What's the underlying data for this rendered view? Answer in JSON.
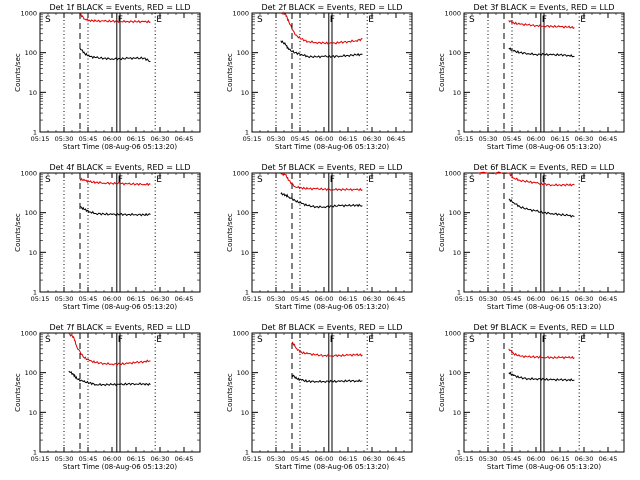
{
  "figure": {
    "background": "#ffffff",
    "colors": {
      "events": "#000000",
      "lld": "#e00000",
      "axes": "#000000"
    }
  },
  "chart_data": [
    {
      "type": "line",
      "title": "Det 1f BLACK = Events, RED = LLD",
      "xlabel": "Start Time (08-Aug-06 05:13:20)",
      "ylabel": "Counts/sec",
      "x_ticks": [
        "05:15",
        "05:30",
        "05:45",
        "06:00",
        "06:15",
        "06:30",
        "06:45"
      ],
      "y_ticks": [
        "1",
        "10",
        "100",
        "1000"
      ],
      "y_scale": "log",
      "xlim": [
        "05:15",
        "06:55"
      ],
      "ylim": [
        1,
        1000
      ],
      "grid": false,
      "region_labels": [
        "S",
        "F",
        "E"
      ],
      "region_markers": {
        "S_dotted": "05:30",
        "F_dashed": "05:40",
        "S2_dotted": "05:45",
        "F_double_1": "06:03",
        "F_double_2": "06:05",
        "E_dotted": "06:27"
      },
      "series": [
        {
          "name": "LLD",
          "x": [
            "05:40",
            "05:43",
            "05:46",
            "05:50",
            "05:55",
            "06:00",
            "06:05",
            "06:10",
            "06:15",
            "06:20",
            "06:24"
          ],
          "y": [
            950,
            700,
            650,
            630,
            620,
            620,
            615,
            610,
            605,
            600,
            600
          ]
        },
        {
          "name": "Events",
          "x": [
            "05:40",
            "05:43",
            "05:46",
            "05:50",
            "05:55",
            "06:00",
            "06:05",
            "06:10",
            "06:15",
            "06:20",
            "06:24"
          ],
          "y": [
            130,
            95,
            80,
            75,
            72,
            70,
            70,
            72,
            72,
            73,
            60
          ]
        }
      ]
    },
    {
      "type": "line",
      "title": "Det 2f BLACK = Events, RED = LLD",
      "xlabel": "Start Time (08-Aug-06 05:13:20)",
      "ylabel": "Counts/sec",
      "x_ticks": [
        "05:15",
        "05:30",
        "05:45",
        "06:00",
        "06:15",
        "06:30",
        "06:45"
      ],
      "y_ticks": [
        "1",
        "10",
        "100",
        "1000"
      ],
      "y_scale": "log",
      "xlim": [
        "05:15",
        "06:55"
      ],
      "ylim": [
        1,
        1000
      ],
      "grid": false,
      "region_labels": [
        "S",
        "F",
        "E"
      ],
      "region_markers": {
        "S_dotted": "05:30",
        "F_dashed": "05:40",
        "S2_dotted": "05:45",
        "F_double_1": "06:03",
        "F_double_2": "06:05",
        "E_dotted": "06:27"
      },
      "series": [
        {
          "name": "LLD",
          "x": [
            "05:33",
            "05:36",
            "05:38",
            "05:42",
            "05:46",
            "05:50",
            "05:55",
            "06:00",
            "06:05",
            "06:10",
            "06:15",
            "06:20",
            "06:24"
          ],
          "y": [
            1000,
            950,
            600,
            280,
            220,
            190,
            180,
            175,
            170,
            180,
            190,
            200,
            220
          ]
        },
        {
          "name": "Events",
          "x": [
            "05:33",
            "05:36",
            "05:38",
            "05:42",
            "05:46",
            "05:50",
            "05:55",
            "06:00",
            "06:05",
            "06:10",
            "06:15",
            "06:20",
            "06:24"
          ],
          "y": [
            200,
            160,
            120,
            100,
            90,
            80,
            78,
            80,
            80,
            82,
            85,
            88,
            90
          ]
        }
      ]
    },
    {
      "type": "line",
      "title": "Det 3f BLACK = Events, RED = LLD",
      "xlabel": "Start Time (08-Aug-06 05:13:20)",
      "ylabel": "Counts/sec",
      "x_ticks": [
        "05:15",
        "05:30",
        "05:45",
        "06:00",
        "06:15",
        "06:30",
        "06:45"
      ],
      "y_ticks": [
        "1",
        "10",
        "100",
        "1000"
      ],
      "y_scale": "log",
      "xlim": [
        "05:15",
        "06:55"
      ],
      "ylim": [
        1,
        1000
      ],
      "grid": false,
      "region_labels": [
        "S",
        "F",
        "E"
      ],
      "region_markers": {
        "S_dotted": "05:30",
        "F_dashed": "05:40",
        "S2_dotted": "05:45",
        "F_double_1": "06:03",
        "F_double_2": "06:05",
        "E_dotted": "06:27"
      },
      "series": [
        {
          "name": "LLD",
          "x": [
            "05:43",
            "05:46",
            "05:50",
            "05:55",
            "06:00",
            "06:05",
            "06:10",
            "06:15",
            "06:20",
            "06:24"
          ],
          "y": [
            650,
            560,
            520,
            500,
            480,
            470,
            460,
            450,
            440,
            430
          ]
        },
        {
          "name": "Events",
          "x": [
            "05:43",
            "05:46",
            "05:50",
            "05:55",
            "06:00",
            "06:05",
            "06:10",
            "06:15",
            "06:20",
            "06:24"
          ],
          "y": [
            130,
            110,
            100,
            95,
            90,
            90,
            88,
            88,
            86,
            80
          ]
        }
      ]
    },
    {
      "type": "line",
      "title": "Det 4f BLACK = Events, RED = LLD",
      "xlabel": "Start Time (08-Aug-06 05:13:20)",
      "ylabel": "Counts/sec",
      "x_ticks": [
        "05:15",
        "05:30",
        "05:45",
        "06:00",
        "06:15",
        "06:30",
        "06:45"
      ],
      "y_ticks": [
        "1",
        "10",
        "100",
        "1000"
      ],
      "y_scale": "log",
      "xlim": [
        "05:15",
        "06:55"
      ],
      "ylim": [
        1,
        1000
      ],
      "grid": false,
      "region_labels": [
        "S",
        "F",
        "E"
      ],
      "region_markers": {
        "S_dotted": "05:30",
        "F_dashed": "05:40",
        "S2_dotted": "05:45",
        "F_double_1": "06:03",
        "F_double_2": "06:05",
        "E_dotted": "06:27"
      },
      "series": [
        {
          "name": "LLD",
          "x": [
            "05:40",
            "05:43",
            "05:46",
            "05:50",
            "05:55",
            "06:00",
            "06:05",
            "06:10",
            "06:15",
            "06:20",
            "06:24"
          ],
          "y": [
            700,
            650,
            600,
            580,
            560,
            550,
            540,
            530,
            525,
            520,
            520
          ]
        },
        {
          "name": "Events",
          "x": [
            "05:40",
            "05:43",
            "05:46",
            "05:50",
            "05:55",
            "06:00",
            "06:05",
            "06:10",
            "06:15",
            "06:20",
            "06:24"
          ],
          "y": [
            140,
            120,
            105,
            95,
            92,
            90,
            90,
            90,
            90,
            88,
            90
          ]
        }
      ]
    },
    {
      "type": "line",
      "title": "Det 5f BLACK = Events, RED = LLD",
      "xlabel": "Start Time (08-Aug-06 05:13:20)",
      "ylabel": "Counts/sec",
      "x_ticks": [
        "05:15",
        "05:30",
        "05:45",
        "06:00",
        "06:15",
        "06:30",
        "06:45"
      ],
      "y_ticks": [
        "1",
        "10",
        "100",
        "1000"
      ],
      "y_scale": "log",
      "xlim": [
        "05:15",
        "06:55"
      ],
      "ylim": [
        1,
        1000
      ],
      "grid": false,
      "region_labels": [
        "S",
        "F",
        "E"
      ],
      "region_markers": {
        "S_dotted": "05:30",
        "F_dashed": "05:40",
        "S2_dotted": "05:45",
        "F_double_1": "06:03",
        "F_double_2": "06:05",
        "E_dotted": "06:27"
      },
      "series": [
        {
          "name": "LLD",
          "x": [
            "05:33",
            "05:36",
            "05:38",
            "05:42",
            "05:46",
            "05:50",
            "05:55",
            "06:00",
            "06:05",
            "06:10",
            "06:15",
            "06:20",
            "06:24"
          ],
          "y": [
            950,
            900,
            650,
            450,
            420,
            400,
            400,
            390,
            385,
            385,
            380,
            380,
            380
          ]
        },
        {
          "name": "Events",
          "x": [
            "05:33",
            "05:36",
            "05:38",
            "05:42",
            "05:46",
            "05:50",
            "05:55",
            "06:00",
            "06:05",
            "06:10",
            "06:15",
            "06:20",
            "06:24"
          ],
          "y": [
            300,
            280,
            250,
            200,
            170,
            150,
            140,
            140,
            145,
            150,
            150,
            155,
            150
          ]
        }
      ]
    },
    {
      "type": "line",
      "title": "Det 6f BLACK = Events, RED = LLD",
      "xlabel": "Start Time (08-Aug-06 05:13:20)",
      "ylabel": "Counts/sec",
      "x_ticks": [
        "05:15",
        "05:30",
        "05:45",
        "06:00",
        "06:15",
        "06:30",
        "06:45"
      ],
      "y_ticks": [
        "1",
        "10",
        "100",
        "1000"
      ],
      "y_scale": "log",
      "xlim": [
        "05:15",
        "06:55"
      ],
      "ylim": [
        1,
        1000
      ],
      "grid": false,
      "region_labels": [
        "S",
        "F",
        "E"
      ],
      "region_markers": {
        "S_dotted": "05:30",
        "F_dashed": "05:40",
        "S2_dotted": "05:45",
        "F_double_1": "06:03",
        "F_double_2": "06:05",
        "E_dotted": "06:27"
      },
      "series": [
        {
          "name": "LLD",
          "x": [
            "05:24",
            "05:43",
            "05:46",
            "05:50",
            "05:55",
            "06:00",
            "06:05",
            "06:10",
            "06:15",
            "06:20",
            "06:24"
          ],
          "y": [
            1000,
            1000,
            750,
            650,
            600,
            560,
            520,
            500,
            500,
            500,
            500
          ]
        },
        {
          "name": "Events",
          "x": [
            "05:43",
            "05:46",
            "05:50",
            "05:55",
            "06:00",
            "06:05",
            "06:10",
            "06:15",
            "06:20",
            "06:24"
          ],
          "y": [
            220,
            180,
            140,
            120,
            110,
            100,
            95,
            90,
            85,
            80
          ]
        }
      ]
    },
    {
      "type": "line",
      "title": "Det 7f BLACK = Events, RED = LLD",
      "xlabel": "Start Time (08-Aug-06 05:13:20)",
      "ylabel": "Counts/sec",
      "x_ticks": [
        "05:15",
        "05:30",
        "05:45",
        "06:00",
        "06:15",
        "06:30",
        "06:45"
      ],
      "y_ticks": [
        "1",
        "10",
        "100",
        "1000"
      ],
      "y_scale": "log",
      "xlim": [
        "05:15",
        "06:55"
      ],
      "ylim": [
        1,
        1000
      ],
      "grid": false,
      "region_labels": [
        "S",
        "F",
        "E"
      ],
      "region_markers": {
        "S_dotted": "05:30",
        "F_dashed": "05:40",
        "S2_dotted": "05:45",
        "F_double_1": "06:03",
        "F_double_2": "06:05",
        "E_dotted": "06:27"
      },
      "series": [
        {
          "name": "LLD",
          "x": [
            "05:33",
            "05:36",
            "05:38",
            "05:42",
            "05:46",
            "05:50",
            "05:55",
            "06:00",
            "06:05",
            "06:10",
            "06:15",
            "06:20",
            "06:24"
          ],
          "y": [
            950,
            800,
            450,
            250,
            200,
            180,
            170,
            165,
            165,
            170,
            180,
            190,
            200
          ]
        },
        {
          "name": "Events",
          "x": [
            "05:33",
            "05:36",
            "05:38",
            "05:42",
            "05:46",
            "05:50",
            "05:55",
            "06:00",
            "06:05",
            "06:10",
            "06:15",
            "06:20",
            "06:24"
          ],
          "y": [
            110,
            90,
            70,
            60,
            55,
            50,
            50,
            50,
            50,
            52,
            52,
            52,
            50
          ]
        }
      ]
    },
    {
      "type": "line",
      "title": "Det 8f BLACK = Events, RED = LLD",
      "xlabel": "Start Time (08-Aug-06 05:13:20)",
      "ylabel": "Counts/sec",
      "x_ticks": [
        "05:15",
        "05:30",
        "05:45",
        "06:00",
        "06:15",
        "06:30",
        "06:45"
      ],
      "y_ticks": [
        "1",
        "10",
        "100",
        "1000"
      ],
      "y_scale": "log",
      "xlim": [
        "05:15",
        "06:55"
      ],
      "ylim": [
        1,
        1000
      ],
      "grid": false,
      "region_labels": [
        "S",
        "F",
        "E"
      ],
      "region_markers": {
        "S_dotted": "05:30",
        "F_dashed": "05:40",
        "S2_dotted": "05:45",
        "F_double_1": "06:03",
        "F_double_2": "06:05",
        "E_dotted": "06:27"
      },
      "series": [
        {
          "name": "LLD",
          "x": [
            "05:40",
            "05:43",
            "05:46",
            "05:50",
            "05:55",
            "06:00",
            "06:05",
            "06:10",
            "06:15",
            "06:20",
            "06:24"
          ],
          "y": [
            600,
            400,
            320,
            300,
            280,
            270,
            270,
            270,
            275,
            280,
            280
          ]
        },
        {
          "name": "Events",
          "x": [
            "05:40",
            "05:43",
            "05:46",
            "05:50",
            "05:55",
            "06:00",
            "06:05",
            "06:10",
            "06:15",
            "06:20",
            "06:24"
          ],
          "y": [
            90,
            70,
            65,
            60,
            60,
            60,
            60,
            60,
            62,
            62,
            62
          ]
        }
      ]
    },
    {
      "type": "line",
      "title": "Det 9f BLACK = Events, RED = LLD",
      "xlabel": "Start Time (08-Aug-06 05:13:20)",
      "ylabel": "Counts/sec",
      "x_ticks": [
        "05:15",
        "05:30",
        "05:45",
        "06:00",
        "06:15",
        "06:30",
        "06:45"
      ],
      "y_ticks": [
        "1",
        "10",
        "100",
        "1000"
      ],
      "y_scale": "log",
      "xlim": [
        "05:15",
        "06:55"
      ],
      "ylim": [
        1,
        1000
      ],
      "grid": false,
      "region_labels": [
        "S",
        "F",
        "E"
      ],
      "region_markers": {
        "S_dotted": "05:30",
        "F_dashed": "05:40",
        "S2_dotted": "05:45",
        "F_double_1": "06:03",
        "F_double_2": "06:05",
        "E_dotted": "06:27"
      },
      "series": [
        {
          "name": "LLD",
          "x": [
            "05:43",
            "05:46",
            "05:50",
            "05:55",
            "06:00",
            "06:05",
            "06:10",
            "06:15",
            "06:20",
            "06:24"
          ],
          "y": [
            400,
            300,
            260,
            250,
            250,
            245,
            240,
            240,
            240,
            240
          ]
        },
        {
          "name": "Events",
          "x": [
            "05:43",
            "05:46",
            "05:50",
            "05:55",
            "06:00",
            "06:05",
            "06:10",
            "06:15",
            "06:20",
            "06:24"
          ],
          "y": [
            100,
            85,
            75,
            70,
            70,
            68,
            66,
            66,
            66,
            65
          ]
        }
      ]
    }
  ]
}
